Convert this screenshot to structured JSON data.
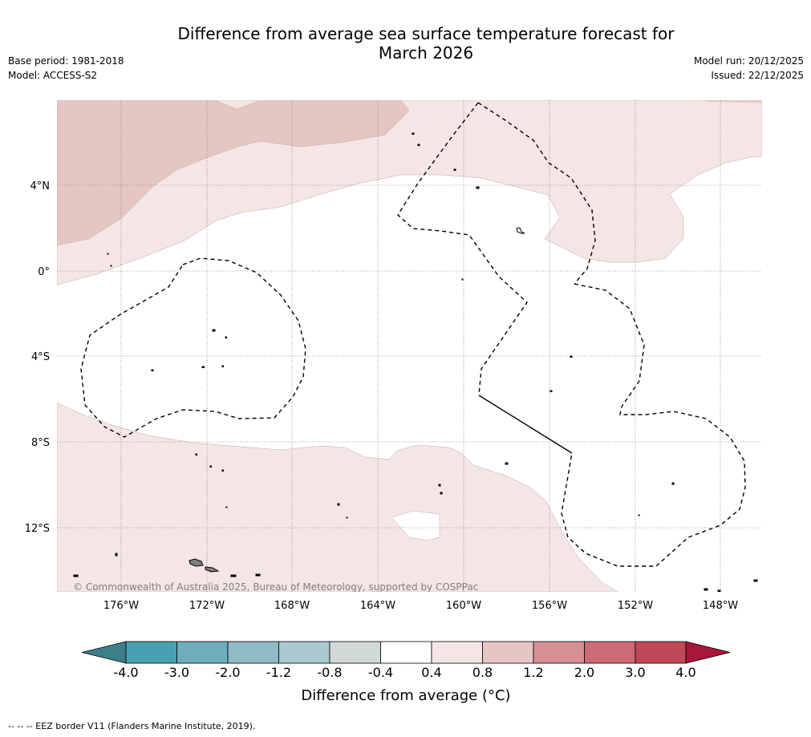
{
  "header": {
    "title_line1": "Difference from average sea surface temperature forecast for",
    "title_line2": "March 2026",
    "base_period": "Base period: 1981-2018",
    "model": "Model: ACCESS-S2",
    "model_run": "Model run: 20/12/2025",
    "issued": "Issued: 22/12/2025"
  },
  "map": {
    "lat_labels": [
      "4°N",
      "0°",
      "4°S",
      "8°S",
      "12°S"
    ],
    "lon_labels": [
      "176°W",
      "172°W",
      "168°W",
      "164°W",
      "160°W",
      "156°W",
      "152°W",
      "148°W"
    ],
    "copyright": "© Commonwealth of Australia 2025, Bureau of Meteorology, supported by COSPPac",
    "colors": {
      "anomaly_0_4_0_8": "#f4e6e4",
      "anomaly_0_8_1_2": "#e6c6c2",
      "land": "#808080"
    }
  },
  "colorbar": {
    "title": "Difference from average (°C)",
    "tick_labels": [
      "-4.0",
      "-3.0",
      "-2.0",
      "-1.2",
      "-0.8",
      "-0.4",
      "0.4",
      "0.8",
      "1.2",
      "2.0",
      "3.0",
      "4.0"
    ],
    "colors": [
      "#3d7f89",
      "#48a0b2",
      "#6eadbc",
      "#90bac5",
      "#aac9cf",
      "#d0d8d8",
      "#ffffff",
      "#f4e6e4",
      "#e6c6c2",
      "#d69095",
      "#cc6a75",
      "#c04957",
      "#a8163a"
    ]
  },
  "footnote": "--  --  -- EEZ border V11 (Flanders Marine Institute, 2019)."
}
